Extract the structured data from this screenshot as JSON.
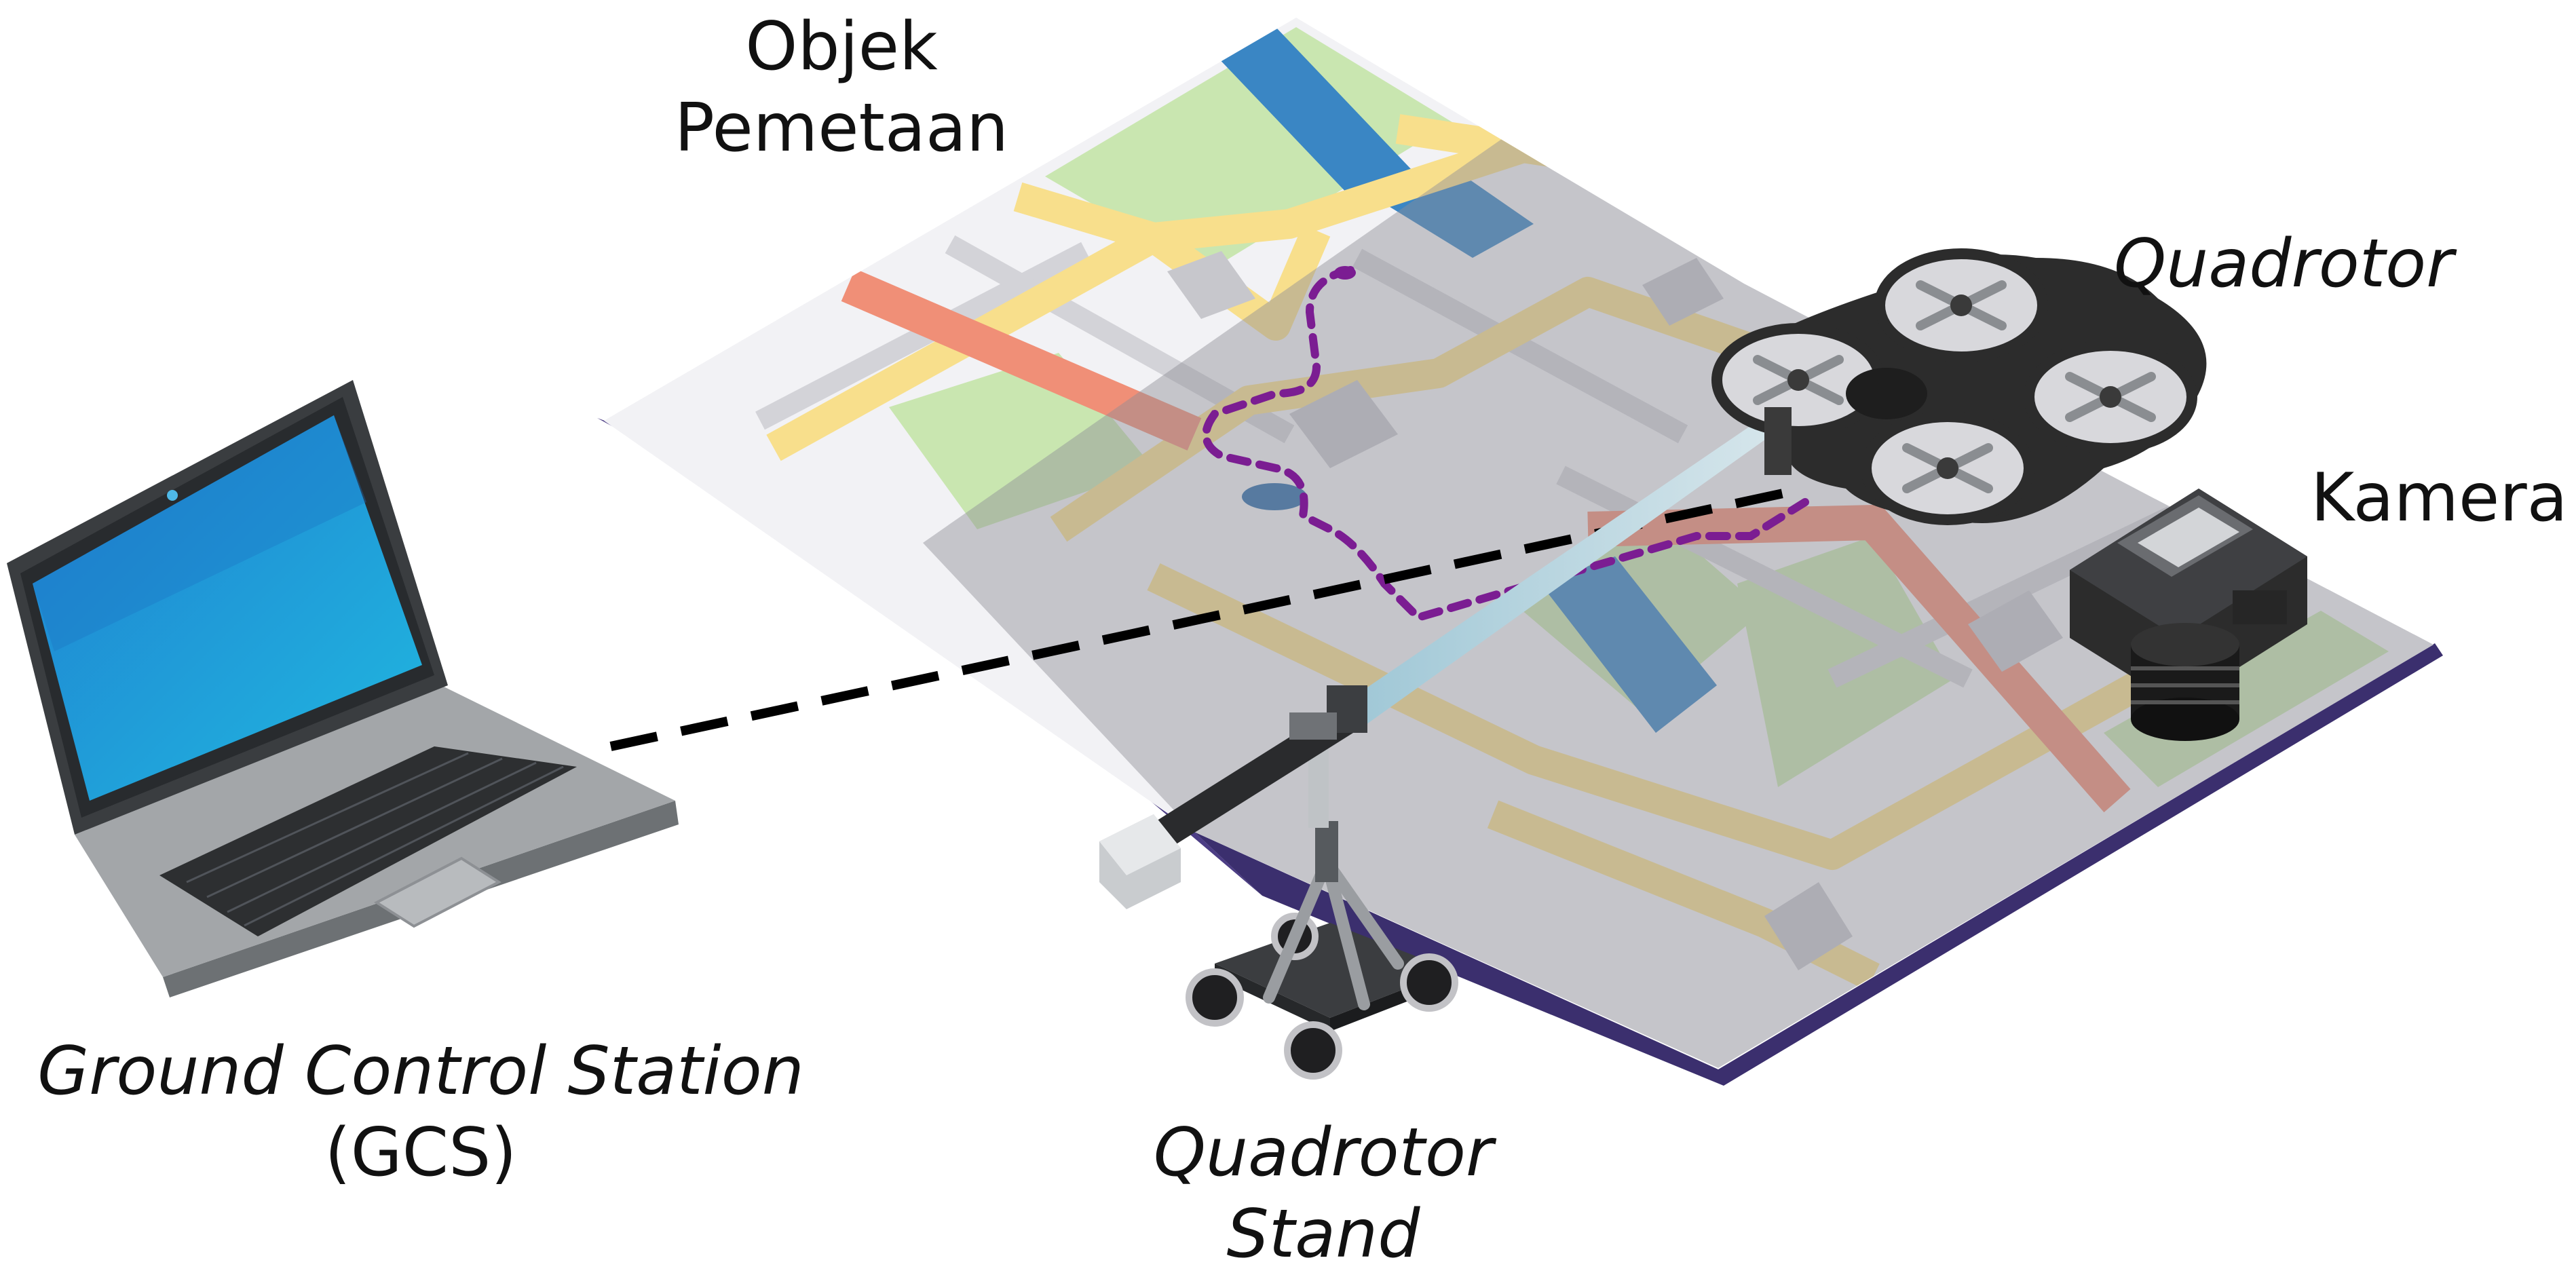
{
  "labels": {
    "mapping_object_line1": "Objek",
    "mapping_object_line2": "Pemetaan",
    "quadrotor": "Quadrotor",
    "camera": "Kamera",
    "gcs_line1": "Ground Control Station",
    "gcs_line2": "(GCS)",
    "stand_line1": "Quadrotor",
    "stand_line2": "Stand"
  },
  "colors": {
    "map_paper": "#f2f2f5",
    "map_shade": "#c4c4c8",
    "map_fold_edge": "#4c3d85",
    "park_green": "#c9e6b0",
    "water_blue": "#3a86c4",
    "main_road_yellow": "#f8df8c",
    "highway_red": "#f08f77",
    "flight_path_purple": "#7b1d92",
    "laptop_body": "#a3a6a9",
    "laptop_screen": "#1d8ad6",
    "drone_frame": "#2c2c2c",
    "link_line": "#000000"
  },
  "icons": [
    "folded-map-icon",
    "laptop-icon",
    "quadrotor-drone-icon",
    "camera-icon",
    "camera-dolly-stand-icon"
  ]
}
